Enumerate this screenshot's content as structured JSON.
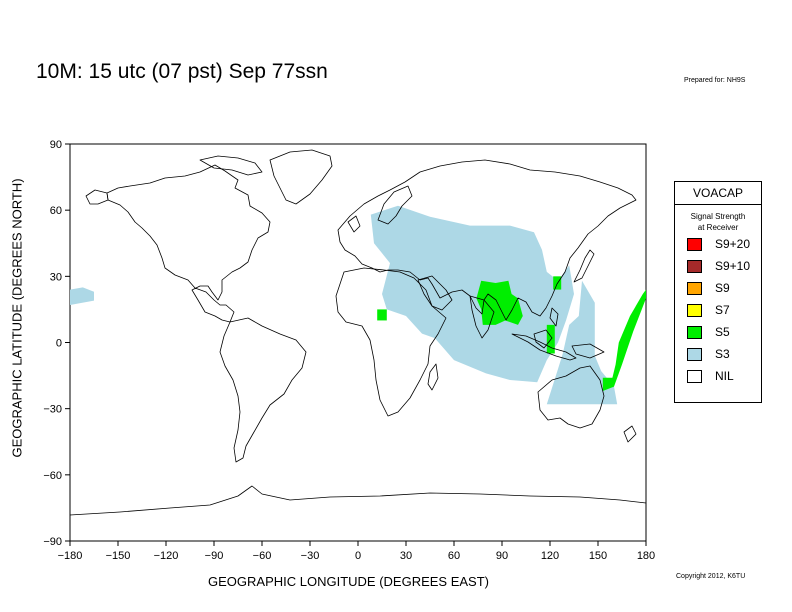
{
  "title": "10M:  15 utc (07 pst) Sep 77ssn",
  "prepared_for": "Prepared for: NH9S",
  "copyright": "Copyright 2012, K6TU",
  "map": {
    "xlabel": "GEOGRAPHIC LONGITUDE (DEGREES EAST)",
    "ylabel": "GEOGRAPHIC LATITUDE (DEGREES NORTH)",
    "xlim": [
      -180,
      180
    ],
    "ylim": [
      -90,
      90
    ],
    "x_ticks": [
      "−180",
      "−150",
      "−120",
      "−90",
      "−60",
      "−30",
      "0",
      "30",
      "60",
      "90",
      "120",
      "150",
      "180"
    ],
    "x_tick_values": [
      -180,
      -150,
      -120,
      -90,
      -60,
      -30,
      0,
      30,
      60,
      90,
      120,
      150,
      180
    ],
    "y_ticks": [
      "90",
      "60",
      "30",
      "0",
      "−30",
      "−60",
      "−90"
    ],
    "y_tick_values": [
      90,
      60,
      30,
      0,
      -30,
      -60,
      -90
    ],
    "colors": {
      "land_outline": "#000000",
      "s3": "#add8e6",
      "s5": "#00ee00",
      "background": "#ffffff"
    }
  },
  "coverage": [
    {
      "level": "S3",
      "lonlat": [
        [
          -180,
          24
        ],
        [
          -172,
          25
        ],
        [
          -165,
          23
        ],
        [
          -165,
          19
        ],
        [
          -180,
          17
        ]
      ]
    },
    {
      "level": "S3",
      "lonlat": [
        [
          8,
          58
        ],
        [
          25,
          62
        ],
        [
          45,
          57
        ],
        [
          70,
          53
        ],
        [
          95,
          53
        ],
        [
          110,
          50
        ],
        [
          115,
          42
        ],
        [
          118,
          32
        ],
        [
          125,
          28
        ],
        [
          132,
          35
        ],
        [
          135,
          22
        ],
        [
          130,
          10
        ],
        [
          125,
          0
        ],
        [
          118,
          -8
        ],
        [
          112,
          -18
        ],
        [
          95,
          -17
        ],
        [
          80,
          -14
        ],
        [
          60,
          -8
        ],
        [
          48,
          2
        ],
        [
          40,
          4
        ],
        [
          30,
          12
        ],
        [
          18,
          15
        ],
        [
          15,
          22
        ],
        [
          20,
          36
        ],
        [
          10,
          45
        ]
      ]
    },
    {
      "level": "S3",
      "lonlat": [
        [
          118,
          -28
        ],
        [
          125,
          -12
        ],
        [
          128,
          -5
        ],
        [
          132,
          8
        ],
        [
          138,
          12
        ],
        [
          140,
          28
        ],
        [
          148,
          18
        ],
        [
          148,
          -6
        ],
        [
          152,
          -13
        ],
        [
          160,
          -20
        ],
        [
          162,
          -28
        ],
        [
          140,
          -28
        ]
      ]
    },
    {
      "level": "S5",
      "lonlat": [
        [
          77,
          28
        ],
        [
          86,
          27
        ],
        [
          94,
          28
        ],
        [
          96,
          22
        ],
        [
          100,
          20
        ],
        [
          103,
          12
        ],
        [
          100,
          8
        ],
        [
          92,
          10
        ],
        [
          86,
          8
        ],
        [
          78,
          8
        ],
        [
          77,
          15
        ],
        [
          74,
          20
        ]
      ]
    },
    {
      "level": "S5",
      "lonlat": [
        [
          12,
          15
        ],
        [
          18,
          15
        ],
        [
          18,
          10
        ],
        [
          12,
          10
        ]
      ]
    },
    {
      "level": "S5",
      "lonlat": [
        [
          118,
          8
        ],
        [
          123,
          8
        ],
        [
          123,
          -5
        ],
        [
          118,
          -5
        ]
      ]
    },
    {
      "level": "S5",
      "lonlat": [
        [
          122,
          30
        ],
        [
          127,
          30
        ],
        [
          127,
          24
        ],
        [
          122,
          24
        ]
      ]
    },
    {
      "level": "S5",
      "lonlat": [
        [
          153,
          -16
        ],
        [
          159,
          -16
        ],
        [
          161,
          -10
        ],
        [
          163,
          0
        ],
        [
          170,
          12
        ],
        [
          178,
          22
        ],
        [
          180,
          24
        ],
        [
          180,
          20
        ],
        [
          172,
          5
        ],
        [
          165,
          -10
        ],
        [
          160,
          -20
        ],
        [
          153,
          -22
        ]
      ]
    }
  ],
  "legend": {
    "title": "VOACAP",
    "subtitle_line1": "Signal Strength",
    "subtitle_line2": "at Receiver",
    "items": [
      {
        "label": "S9+20",
        "color": "#ff0000"
      },
      {
        "label": "S9+10",
        "color": "#a52a2a"
      },
      {
        "label": "S9",
        "color": "#ffa500"
      },
      {
        "label": "S7",
        "color": "#ffff00"
      },
      {
        "label": "S5",
        "color": "#00ee00"
      },
      {
        "label": "S3",
        "color": "#add8e6"
      },
      {
        "label": "NIL",
        "color": "#ffffff"
      }
    ]
  }
}
